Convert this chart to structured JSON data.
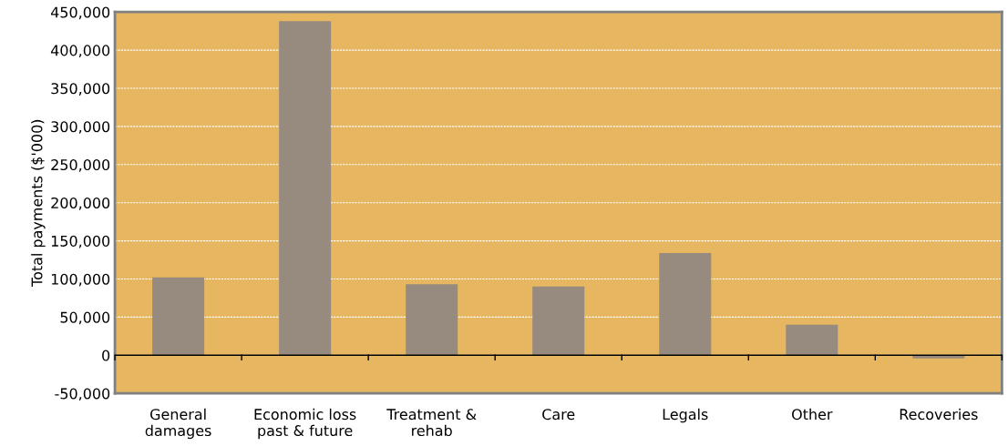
{
  "chart_data": {
    "type": "bar",
    "categories": [
      "General\ndamages",
      "Economic loss\npast & future",
      "Treatment &\nrehab",
      "Care",
      "Legals",
      "Other",
      "Recoveries"
    ],
    "values": [
      102000,
      438000,
      93000,
      90000,
      134000,
      40000,
      -4000
    ],
    "color": "#978a7e",
    "ylabel": "Total payments ($'000)",
    "ylim": [
      -50000,
      450000
    ],
    "yticks": [
      {
        "value": -50000,
        "label": "-50,000"
      },
      0,
      {
        "value": 50000,
        "label": "50,000"
      },
      {
        "value": 100000,
        "label": "100,000"
      },
      {
        "value": 150000,
        "label": "150,000"
      },
      {
        "value": 200000,
        "label": "200,000"
      },
      {
        "value": 250000,
        "label": "250,000"
      },
      {
        "value": 300000,
        "label": "300,000"
      },
      {
        "value": 350000,
        "label": "350,000"
      },
      {
        "value": 400000,
        "label": "400,000"
      },
      {
        "value": 450000,
        "label": "450,000"
      }
    ],
    "grid": "y",
    "ref_lines": [
      {
        "axis": "y",
        "value": 0,
        "color": "#000000",
        "line_style": "solid"
      }
    ]
  }
}
